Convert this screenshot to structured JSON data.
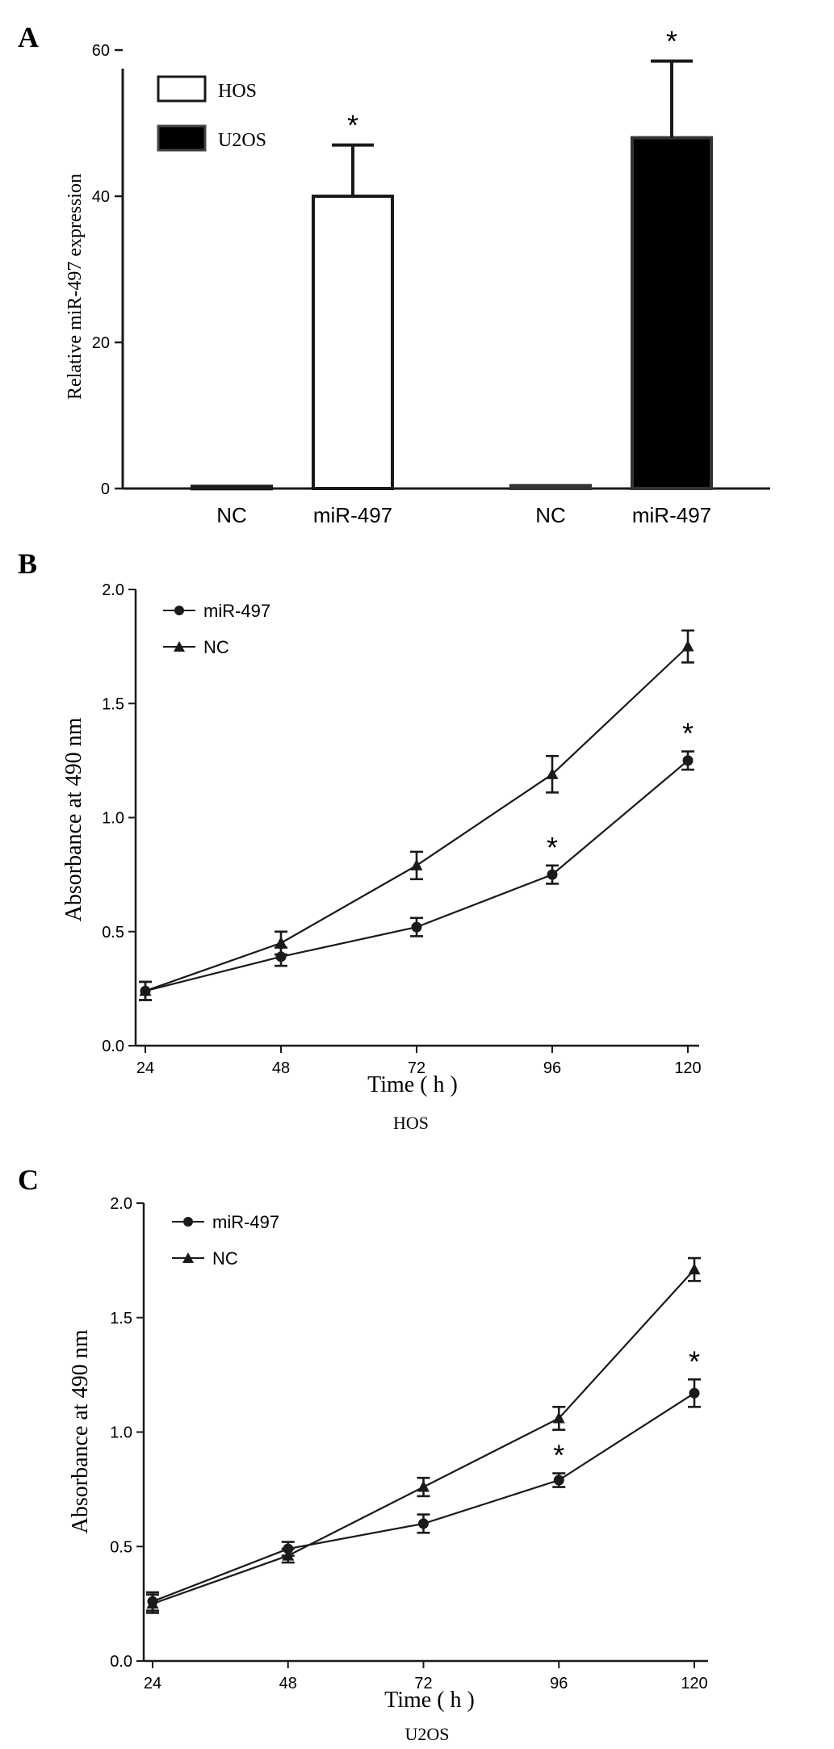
{
  "chart_data": [
    {
      "panel": "A",
      "type": "bar",
      "ylabel": "Relative  miR-497  expression",
      "ylim": [
        0,
        60
      ],
      "yticks": [
        0,
        20,
        40,
        60
      ],
      "legend": [
        {
          "name": "HOS",
          "color": "#ffffff"
        },
        {
          "name": "U2OS",
          "color": "#000000"
        }
      ],
      "bars": [
        {
          "label": "NC",
          "group": "HOS",
          "value": 0.3,
          "error": 0,
          "sig": ""
        },
        {
          "label": "miR-497",
          "group": "HOS",
          "value": 40,
          "error": 7,
          "sig": "*"
        },
        {
          "label": "NC",
          "group": "U2OS",
          "value": 0.4,
          "error": 0,
          "sig": ""
        },
        {
          "label": "miR-497",
          "group": "U2OS",
          "value": 48,
          "error": 10.5,
          "sig": "*"
        }
      ]
    },
    {
      "panel": "B",
      "type": "line",
      "xlabel": "Time ( h )",
      "ylabel": "Absorbance at 490 nm",
      "subtitle": "HOS",
      "x": [
        24,
        48,
        72,
        96,
        120
      ],
      "ylim": [
        0,
        2.0
      ],
      "yticks": [
        "0.0",
        "0.5",
        "1.0",
        "1.5",
        "2.0"
      ],
      "series": [
        {
          "name": "miR-497",
          "marker": "circle",
          "values": [
            0.24,
            0.39,
            0.52,
            0.75,
            1.25
          ],
          "errors": [
            0.04,
            0.04,
            0.04,
            0.04,
            0.04
          ],
          "sig": [
            "",
            "",
            "",
            "*",
            "*"
          ]
        },
        {
          "name": "NC",
          "marker": "triangle",
          "values": [
            0.24,
            0.45,
            0.79,
            1.19,
            1.75
          ],
          "errors": [
            0.04,
            0.05,
            0.06,
            0.08,
            0.07
          ]
        }
      ]
    },
    {
      "panel": "C",
      "type": "line",
      "xlabel": "Time ( h )",
      "ylabel": "Absorbance at 490 nm",
      "subtitle": "U2OS",
      "x": [
        24,
        48,
        72,
        96,
        120
      ],
      "ylim": [
        0,
        2.0
      ],
      "yticks": [
        "0.0",
        "0.5",
        "1.0",
        "1.5",
        "2.0"
      ],
      "series": [
        {
          "name": "miR-497",
          "marker": "circle",
          "values": [
            0.26,
            0.49,
            0.6,
            0.79,
            1.17
          ],
          "errors": [
            0.04,
            0.03,
            0.04,
            0.03,
            0.06
          ],
          "sig": [
            "",
            "",
            "",
            "*",
            "*"
          ]
        },
        {
          "name": "NC",
          "marker": "triangle",
          "values": [
            0.25,
            0.46,
            0.76,
            1.06,
            1.71
          ],
          "errors": [
            0.04,
            0.03,
            0.04,
            0.05,
            0.05
          ]
        }
      ]
    }
  ]
}
